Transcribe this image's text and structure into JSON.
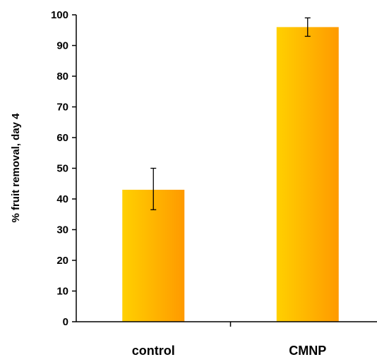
{
  "chart_data": {
    "type": "bar",
    "title": "",
    "xlabel": "",
    "ylabel": "% fruit removal, day 4",
    "ylim": [
      0,
      100
    ],
    "yticks": [
      0,
      10,
      20,
      30,
      40,
      50,
      60,
      70,
      80,
      90,
      100
    ],
    "grid": false,
    "categories": [
      "control",
      "CMNP"
    ],
    "values": [
      43,
      96
    ],
    "error": [
      {
        "low": 36.5,
        "high": 50
      },
      {
        "low": 93,
        "high": 99
      }
    ],
    "bar_gradient": [
      "#ffd000",
      "#ff9a00"
    ]
  }
}
